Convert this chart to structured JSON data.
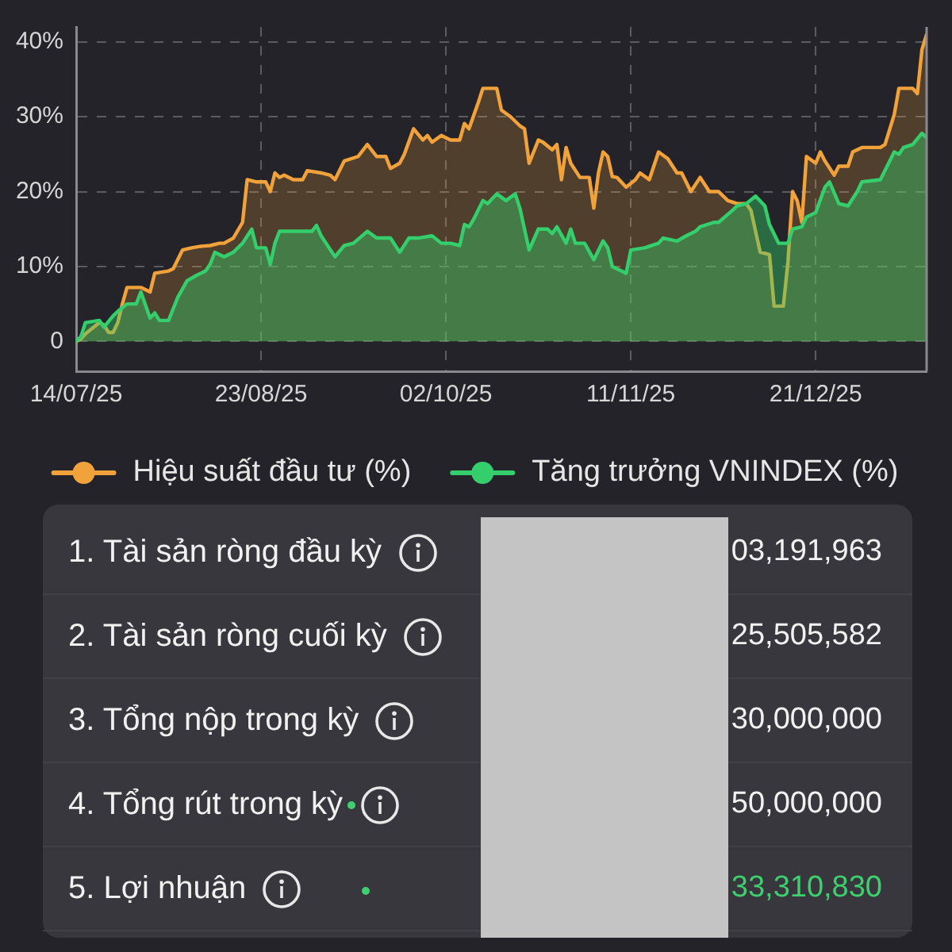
{
  "chart_data": [
    {
      "type": "area",
      "xlim": [
        "2025-07-14",
        "2026-01-14"
      ],
      "xticks": [
        {
          "value": "2025-07-14",
          "label": "14/07/25"
        },
        {
          "value": "2025-08-23",
          "label": "23/08/25"
        },
        {
          "value": "2025-10-02",
          "label": "02/10/25"
        },
        {
          "value": "2025-11-11",
          "label": "11/11/25"
        },
        {
          "value": "2025-12-21",
          "label": "21/12/25"
        }
      ],
      "ylim": [
        -4,
        42
      ],
      "yticks": [
        0,
        {
          "value": 10,
          "label": "10%"
        },
        {
          "value": 20,
          "label": "20%"
        },
        {
          "value": 30,
          "label": "30%"
        },
        {
          "value": 40,
          "label": "40%"
        }
      ],
      "grid": true,
      "legend": "bottom",
      "series": [
        {
          "name": "Hiệu suất đầu tư (%)",
          "color": "#f2a23a",
          "x": [
            "2025-07-14",
            "2025-07-15",
            "2025-07-16",
            "2025-07-19",
            "2025-07-20",
            "2025-07-21",
            "2025-07-22",
            "2025-07-23",
            "2025-07-24",
            "2025-07-25",
            "2025-07-28",
            "2025-07-30",
            "2025-07-31",
            "2025-08-03",
            "2025-08-04",
            "2025-08-06",
            "2025-08-08",
            "2025-08-10",
            "2025-08-12",
            "2025-08-14",
            "2025-08-15",
            "2025-08-17",
            "2025-08-19",
            "2025-08-20",
            "2025-08-22",
            "2025-08-24",
            "2025-08-25",
            "2025-08-26",
            "2025-08-27",
            "2025-08-28",
            "2025-08-30",
            "2025-09-01",
            "2025-09-02",
            "2025-09-05",
            "2025-09-07",
            "2025-09-08",
            "2025-09-10",
            "2025-09-13",
            "2025-09-15",
            "2025-09-17",
            "2025-09-19",
            "2025-09-20",
            "2025-09-22",
            "2025-09-23",
            "2025-09-25",
            "2025-09-27",
            "2025-09-28",
            "2025-09-29",
            "2025-10-01",
            "2025-10-03",
            "2025-10-05",
            "2025-10-06",
            "2025-10-07",
            "2025-10-09",
            "2025-10-10",
            "2025-10-13",
            "2025-10-14",
            "2025-10-16",
            "2025-10-18",
            "2025-10-19",
            "2025-10-20",
            "2025-10-22",
            "2025-10-23",
            "2025-10-25",
            "2025-10-26",
            "2025-10-27",
            "2025-10-28",
            "2025-10-29",
            "2025-10-31",
            "2025-11-02",
            "2025-11-03",
            "2025-11-04",
            "2025-11-05",
            "2025-11-06",
            "2025-11-07",
            "2025-11-08",
            "2025-11-10",
            "2025-11-12",
            "2025-11-13",
            "2025-11-15",
            "2025-11-17",
            "2025-11-19",
            "2025-11-21",
            "2025-11-22",
            "2025-11-24",
            "2025-11-26",
            "2025-11-28",
            "2025-11-30",
            "2025-12-02",
            "2025-12-04",
            "2025-12-06",
            "2025-12-07",
            "2025-12-09",
            "2025-12-11",
            "2025-12-12",
            "2025-12-14",
            "2025-12-15",
            "2025-12-16",
            "2025-12-17",
            "2025-12-18",
            "2025-12-19",
            "2025-12-21",
            "2025-12-22",
            "2025-12-23",
            "2025-12-25",
            "2025-12-26",
            "2025-12-28",
            "2025-12-29",
            "2025-12-31",
            "2026-01-04",
            "2026-01-05",
            "2026-01-07",
            "2026-01-08",
            "2026-01-11",
            "2026-01-12",
            "2026-01-13",
            "2026-01-14"
          ],
          "values": [
            0,
            0.3,
            1.0,
            2.5,
            2.2,
            1.2,
            1.2,
            2.5,
            5.0,
            7.2,
            7.2,
            6.6,
            9.1,
            9.4,
            9.7,
            12.2,
            12.5,
            12.7,
            12.8,
            13.1,
            13.1,
            13.8,
            15.9,
            21.6,
            21.3,
            21.3,
            20.0,
            22.5,
            21.9,
            22.2,
            21.6,
            21.6,
            22.8,
            22.5,
            22.2,
            21.6,
            24.1,
            24.7,
            26.3,
            24.7,
            24.7,
            23.1,
            23.8,
            25.0,
            28.4,
            26.9,
            27.5,
            26.6,
            27.5,
            26.9,
            26.9,
            29.1,
            28.4,
            31.9,
            33.8,
            33.8,
            30.9,
            30.0,
            28.8,
            28.4,
            23.8,
            26.9,
            26.6,
            25.6,
            26.3,
            21.6,
            25.9,
            23.8,
            21.9,
            21.9,
            17.8,
            22.5,
            25.3,
            24.7,
            22.0,
            21.9,
            20.6,
            21.6,
            22.5,
            21.6,
            25.3,
            24.4,
            22.5,
            22.5,
            20.0,
            21.9,
            20.0,
            20.0,
            18.8,
            18.4,
            18.4,
            17.5,
            11.9,
            11.6,
            4.7,
            4.7,
            10.6,
            20.0,
            18.8,
            15.9,
            24.7,
            23.8,
            25.3,
            24.1,
            22.2,
            23.4,
            23.4,
            25.3,
            25.9,
            25.9,
            26.3,
            30.3,
            33.8,
            33.8,
            33.1,
            39.0,
            41.0
          ]
        },
        {
          "name": "Tăng trưởng VNINDEX (%)",
          "color": "#34cf6c",
          "x": [
            "2025-07-14",
            "2025-07-15",
            "2025-07-16",
            "2025-07-19",
            "2025-07-20",
            "2025-07-22",
            "2025-07-23",
            "2025-07-25",
            "2025-07-27",
            "2025-07-28",
            "2025-07-30",
            "2025-07-31",
            "2025-08-01",
            "2025-08-03",
            "2025-08-05",
            "2025-08-07",
            "2025-08-09",
            "2025-08-11",
            "2025-08-12",
            "2025-08-13",
            "2025-08-15",
            "2025-08-17",
            "2025-08-19",
            "2025-08-21",
            "2025-08-22",
            "2025-08-24",
            "2025-08-25",
            "2025-08-26",
            "2025-08-27",
            "2025-08-30",
            "2025-09-01",
            "2025-09-03",
            "2025-09-04",
            "2025-09-05",
            "2025-09-08",
            "2025-09-10",
            "2025-09-12",
            "2025-09-15",
            "2025-09-17",
            "2025-09-20",
            "2025-09-22",
            "2025-09-24",
            "2025-09-26",
            "2025-09-29",
            "2025-10-01",
            "2025-10-03",
            "2025-10-05",
            "2025-10-06",
            "2025-10-07",
            "2025-10-08",
            "2025-10-10",
            "2025-10-11",
            "2025-10-13",
            "2025-10-15",
            "2025-10-17",
            "2025-10-18",
            "2025-10-20",
            "2025-10-22",
            "2025-10-24",
            "2025-10-25",
            "2025-10-26",
            "2025-10-28",
            "2025-10-29",
            "2025-10-30",
            "2025-11-01",
            "2025-11-03",
            "2025-11-05",
            "2025-11-06",
            "2025-11-07",
            "2025-11-10",
            "2025-11-11",
            "2025-11-14",
            "2025-11-17",
            "2025-11-18",
            "2025-11-21",
            "2025-11-23",
            "2025-11-25",
            "2025-11-26",
            "2025-11-29",
            "2025-11-30",
            "2025-12-03",
            "2025-12-04",
            "2025-12-06",
            "2025-12-08",
            "2025-12-10",
            "2025-12-11",
            "2025-12-13",
            "2025-12-15",
            "2025-12-16",
            "2025-12-18",
            "2025-12-19",
            "2025-12-21",
            "2025-12-23",
            "2025-12-24",
            "2025-12-26",
            "2025-12-28",
            "2025-12-30",
            "2025-12-31",
            "2026-01-04",
            "2026-01-07",
            "2026-01-08",
            "2026-01-09",
            "2026-01-11",
            "2026-01-13",
            "2026-01-14"
          ],
          "values": [
            0,
            0.6,
            2.5,
            2.8,
            1.9,
            3.4,
            4.0,
            5.0,
            5.0,
            6.6,
            3.1,
            3.8,
            2.8,
            2.8,
            5.9,
            8.1,
            8.8,
            9.4,
            10.3,
            11.9,
            11.3,
            11.9,
            13.1,
            15.0,
            12.5,
            12.5,
            10.3,
            13.1,
            14.7,
            14.7,
            14.7,
            14.7,
            15.5,
            14.1,
            11.3,
            12.8,
            13.1,
            14.7,
            13.8,
            13.8,
            11.9,
            13.8,
            13.8,
            14.1,
            13.1,
            13.1,
            12.8,
            15.6,
            15.3,
            16.3,
            18.8,
            18.4,
            19.7,
            18.8,
            19.7,
            17.8,
            12.2,
            15.0,
            15.0,
            14.4,
            15.3,
            13.1,
            15.0,
            13.1,
            13.1,
            10.9,
            13.4,
            12.5,
            10.0,
            9.1,
            12.2,
            12.5,
            13.1,
            13.8,
            13.4,
            14.1,
            14.7,
            15.3,
            15.9,
            15.9,
            17.5,
            18.1,
            18.4,
            19.4,
            18.1,
            15.6,
            13.1,
            13.1,
            15.0,
            15.3,
            16.6,
            17.2,
            20.6,
            21.3,
            18.4,
            18.1,
            20.0,
            21.3,
            21.6,
            25.3,
            25.0,
            25.9,
            26.3,
            27.8,
            27.2
          ]
        }
      ]
    },
    {
      "type": "other",
      "annotations": [
        "1. Tài sản ròng đầu kỳ",
        "03,191,963",
        "2. Tài sản ròng cuối kỳ",
        "25,505,582",
        "3. Tổng nộp trong kỳ",
        "30,000,000",
        "4. Tổng rút trong kỳ",
        "50,000,000",
        "5. Lợi nhuận",
        "33,310,830"
      ]
    }
  ]
}
